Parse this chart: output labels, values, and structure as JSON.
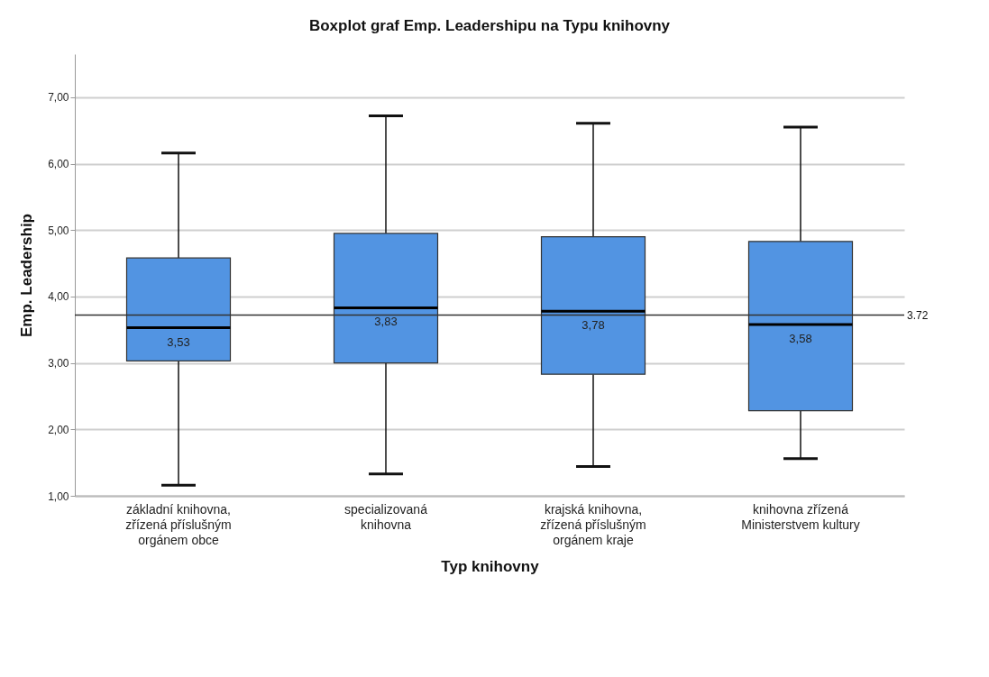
{
  "chart_data": {
    "type": "box",
    "title": "Boxplot graf Emp. Leadershipu na Typu knihovny",
    "xlabel": "Typ knihovny",
    "ylabel": "Emp. Leadership",
    "categories": [
      "základní knihovna, zřízená příslušným orgánem obce",
      "specializovaná knihovna",
      "krajská knihovna, zřízená příslušným orgánem kraje",
      "knihovna zřízená Ministerstvem kultury"
    ],
    "series": [
      {
        "color": "#5294e2",
        "boxes": [
          {
            "low": 1.16,
            "q1": 3.03,
            "median": 3.53,
            "q3": 4.58,
            "high": 6.16
          },
          {
            "low": 1.33,
            "q1": 3.0,
            "median": 3.83,
            "q3": 4.95,
            "high": 6.72
          },
          {
            "low": 1.44,
            "q1": 2.83,
            "median": 3.78,
            "q3": 4.9,
            "high": 6.61
          },
          {
            "low": 1.56,
            "q1": 2.28,
            "median": 3.58,
            "q3": 4.83,
            "high": 6.55
          }
        ],
        "value_labels": [
          "3,53",
          "3,83",
          "3,78",
          "3,58"
        ]
      }
    ],
    "ylim": [
      1,
      7.65
    ],
    "yticks": [
      {
        "value": 1,
        "label": "1,00"
      },
      {
        "value": 2,
        "label": "2,00"
      },
      {
        "value": 3,
        "label": "3,00"
      },
      {
        "value": 4,
        "label": "4,00"
      },
      {
        "value": 5,
        "label": "5,00"
      },
      {
        "value": 6,
        "label": "6,00"
      },
      {
        "value": 7,
        "label": "7,00"
      }
    ],
    "grid": "y",
    "ref_lines": [
      {
        "axis": "y",
        "value": 3.72,
        "label": "3.72",
        "color": "#333333"
      }
    ]
  }
}
